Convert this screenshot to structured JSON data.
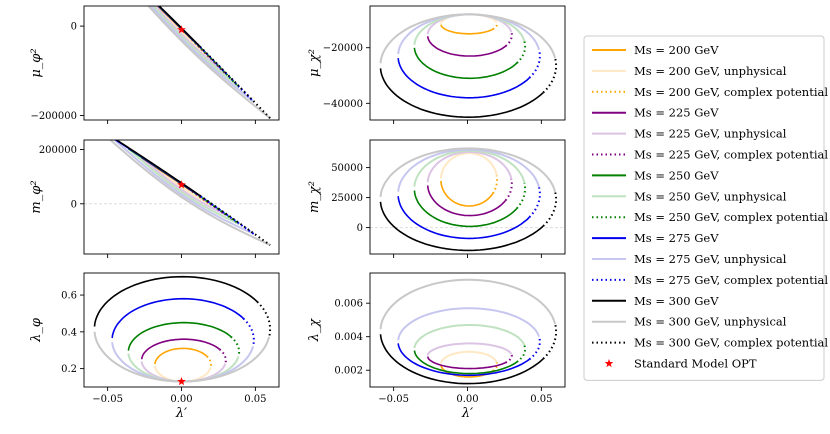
{
  "chart_data": {
    "type": "line",
    "title": "",
    "legend_position": "right",
    "legend": [
      {
        "label": "Ms = 200 GeV",
        "style": "solid",
        "color": "#ffa500"
      },
      {
        "label": "Ms = 200 GeV, unphysical",
        "style": "faded",
        "color": "#ffe8c4"
      },
      {
        "label": "Ms = 200 GeV, complex potential",
        "style": "dotted",
        "color": "#ffa500"
      },
      {
        "label": "Ms = 225 GeV",
        "style": "solid",
        "color": "#800080"
      },
      {
        "label": "Ms = 225 GeV, unphysical",
        "style": "faded",
        "color": "#dcc4e4"
      },
      {
        "label": "Ms = 225 GeV, complex potential",
        "style": "dotted",
        "color": "#800080"
      },
      {
        "label": "Ms = 250 GeV",
        "style": "solid",
        "color": "#008000"
      },
      {
        "label": "Ms = 250 GeV, unphysical",
        "style": "faded",
        "color": "#c0e2c0"
      },
      {
        "label": "Ms = 250 GeV, complex potential",
        "style": "dotted",
        "color": "#008000"
      },
      {
        "label": "Ms = 275 GeV",
        "style": "solid",
        "color": "#0000ee"
      },
      {
        "label": "Ms = 275 GeV, unphysical",
        "style": "faded",
        "color": "#c6c6ef"
      },
      {
        "label": "Ms = 275 GeV, complex potential",
        "style": "dotted",
        "color": "#0000ee"
      },
      {
        "label": "Ms = 300 GeV",
        "style": "solid",
        "color": "#000000"
      },
      {
        "label": "Ms = 300 GeV, unphysical",
        "style": "faded",
        "color": "#c8c8c8"
      },
      {
        "label": "Ms = 300 GeV, complex potential",
        "style": "dotted",
        "color": "#000000"
      },
      {
        "label": "Standard Model OPT",
        "style": "star",
        "color": "#ff0000"
      }
    ],
    "panels": [
      {
        "id": "mu_phi",
        "ylabel": "μ_φ²",
        "yticks": [
          -200000,
          0
        ],
        "ytick_labels": [
          "−200000",
          "0"
        ],
        "ylim": [
          -210000,
          45000
        ]
      },
      {
        "id": "m_phi",
        "ylabel": "m_φ²",
        "yticks": [
          0,
          200000
        ],
        "ytick_labels": [
          "0",
          "200000"
        ],
        "ylim": [
          -185000,
          235000
        ]
      },
      {
        "id": "lambda_phi",
        "ylabel": "λ_φ",
        "xlabel": "λ′",
        "yticks": [
          0.2,
          0.4,
          0.6
        ],
        "ytick_labels": [
          "0.2",
          "0.4",
          "0.6"
        ],
        "ylim": [
          0.1,
          0.72
        ]
      },
      {
        "id": "mu_chi",
        "ylabel": "μ_χ²",
        "yticks": [
          -40000,
          -20000
        ],
        "ytick_labels": [
          "−40000",
          "−20000"
        ],
        "ylim": [
          -46000,
          -5000
        ]
      },
      {
        "id": "m_chi",
        "ylabel": "m_χ²",
        "yticks": [
          0,
          25000,
          50000
        ],
        "ytick_labels": [
          "0",
          "25000",
          "50000"
        ],
        "ylim": [
          -22000,
          73000
        ]
      },
      {
        "id": "lambda_chi",
        "ylabel": "λ_χ",
        "xlabel": "λ′",
        "yticks": [
          0.002,
          0.004,
          0.006
        ],
        "ytick_labels": [
          "0.002",
          "0.004",
          "0.006"
        ],
        "ylim": [
          0.001,
          0.0078
        ]
      }
    ],
    "xlim": [
      -0.066,
      0.066
    ],
    "xticks": [
      -0.05,
      0.0,
      0.05
    ],
    "xtick_labels": [
      "−0.05",
      "0.00",
      "0.05"
    ],
    "series_extent": [
      {
        "Ms": 200,
        "lambda_min": -0.018,
        "lambda_max": 0.02,
        "lambda_phi_min": 0.13,
        "lambda_phi_max": 0.31,
        "mu_chi_min": -15000,
        "mu_chi_max": -8000,
        "m_chi_min": 18000,
        "m_chi_max": 62000,
        "lambda_chi_min": 0.0016,
        "lambda_chi_max": 0.0031
      },
      {
        "Ms": 225,
        "lambda_min": -0.027,
        "lambda_max": 0.03,
        "lambda_phi_min": 0.13,
        "lambda_phi_max": 0.36,
        "mu_chi_min": -23000,
        "mu_chi_max": -8000,
        "m_chi_min": 10000,
        "m_chi_max": 63000,
        "lambda_chi_min": 0.0021,
        "lambda_chi_max": 0.0036
      },
      {
        "Ms": 250,
        "lambda_min": -0.036,
        "lambda_max": 0.039,
        "lambda_phi_min": 0.13,
        "lambda_phi_max": 0.45,
        "mu_chi_min": -31000,
        "mu_chi_max": -8000,
        "m_chi_min": 1000,
        "m_chi_max": 64000,
        "lambda_chi_min": 0.0018,
        "lambda_chi_max": 0.0047
      },
      {
        "Ms": 275,
        "lambda_min": -0.047,
        "lambda_max": 0.049,
        "lambda_phi_min": 0.13,
        "lambda_phi_max": 0.58,
        "mu_chi_min": -38000,
        "mu_chi_max": -8000,
        "m_chi_min": -9000,
        "m_chi_max": 65000,
        "lambda_chi_min": 0.0017,
        "lambda_chi_max": 0.0057
      },
      {
        "Ms": 300,
        "lambda_min": -0.059,
        "lambda_max": 0.06,
        "lambda_phi_min": 0.13,
        "lambda_phi_max": 0.7,
        "mu_chi_min": -45000,
        "mu_chi_max": -8000,
        "m_chi_min": -19000,
        "m_chi_max": 66000,
        "lambda_chi_min": 0.0012,
        "lambda_chi_max": 0.0074
      }
    ],
    "sm_opt": {
      "lambda": 0.0,
      "mu_phi": -8000,
      "m_phi": 70000,
      "lambda_phi": 0.13
    }
  }
}
